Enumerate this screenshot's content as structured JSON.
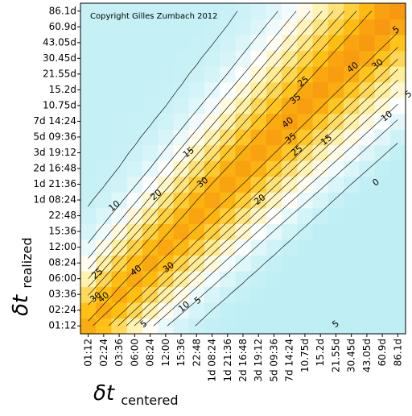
{
  "chart_data": {
    "type": "heatmap",
    "title": "",
    "copyright": "Copyright Gilles Zumbach 2012",
    "xlabel": {
      "main": "δt",
      "sub": "centered"
    },
    "ylabel": {
      "main": "δt",
      "sub": "realized"
    },
    "tick_labels": [
      "01:12",
      "02:24",
      "03:36",
      "06:00",
      "08:24",
      "12:00",
      "15:36",
      "22:48",
      "1d 08:24",
      "1d 21:36",
      "2d 16:48",
      "3d 19:12",
      "5d 09:36",
      "7d 14:24",
      "10.75d",
      "15.2d",
      "21.55d",
      "30.45d",
      "43.05d",
      "60.9d",
      "86.1d"
    ],
    "color_scale": {
      "low": "#bfeff5",
      "zero": "#ffffff",
      "mid": "#fff0a0",
      "high": "#ffc010",
      "peak": "#e85010"
    },
    "contour_labels": [
      {
        "text": "5",
        "col": 19.9,
        "row": 18.8
      },
      {
        "text": "40",
        "col": 17.1,
        "row": 16.4
      },
      {
        "text": "30",
        "col": 18.7,
        "row": 16.6
      },
      {
        "text": "25",
        "col": 13.9,
        "row": 15.5
      },
      {
        "text": "35",
        "col": 13.4,
        "row": 14.4
      },
      {
        "text": "5",
        "col": 20.7,
        "row": 14.7
      },
      {
        "text": "10",
        "col": 19.3,
        "row": 13.3
      },
      {
        "text": "40",
        "col": 12.9,
        "row": 12.9
      },
      {
        "text": "35",
        "col": 13.1,
        "row": 11.9
      },
      {
        "text": "25",
        "col": 13.5,
        "row": 11.1
      },
      {
        "text": "15",
        "col": 15.4,
        "row": 11.8
      },
      {
        "text": "15",
        "col": 6.5,
        "row": 11.0
      },
      {
        "text": "30",
        "col": 7.4,
        "row": 9.1
      },
      {
        "text": "20",
        "col": 4.4,
        "row": 8.3
      },
      {
        "text": "0",
        "col": 18.6,
        "row": 9.1
      },
      {
        "text": "20",
        "col": 11.1,
        "row": 8.0
      },
      {
        "text": "10",
        "col": 1.7,
        "row": 7.6
      },
      {
        "text": "40",
        "col": 3.1,
        "row": 3.5
      },
      {
        "text": "30",
        "col": 5.2,
        "row": 3.7
      },
      {
        "text": "25",
        "col": 0.6,
        "row": 3.3
      },
      {
        "text": "30",
        "col": 0.5,
        "row": 1.8
      },
      {
        "text": "40",
        "col": 1.0,
        "row": 1.8
      },
      {
        "text": "5",
        "col": 7.1,
        "row": 1.6
      },
      {
        "text": "10",
        "col": 6.2,
        "row": 1.2
      },
      {
        "text": "5",
        "col": 3.6,
        "row": 0.1
      },
      {
        "text": "5",
        "col": 16.0,
        "row": 0.1
      }
    ]
  }
}
